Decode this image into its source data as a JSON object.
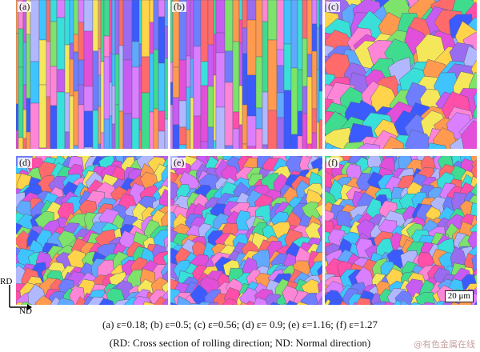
{
  "panels": [
    {
      "label": "(a)",
      "pattern": "columnar"
    },
    {
      "label": "(b)",
      "pattern": "columnar"
    },
    {
      "label": "(c)",
      "pattern": "coarse-equiaxed"
    },
    {
      "label": "(d)",
      "pattern": "equiaxed"
    },
    {
      "label": "(e)",
      "pattern": "equiaxed"
    },
    {
      "label": "(f)",
      "pattern": "equiaxed"
    }
  ],
  "scale_bar": "20 μm",
  "axes": {
    "vertical": "RD",
    "horizontal": "ND"
  },
  "caption": {
    "line1": "(a) ε=0.18; (b) ε=0.5; (c) ε=0.56; (d) ε= 0.9; (e) ε=1.16; (f) ε=1.27",
    "line2": "(RD: Cross section of rolling direction; ND: Normal direction)"
  },
  "watermark": "@有色金属在线",
  "palette": [
    "#3b5bff",
    "#6f7dff",
    "#9a6cf0",
    "#c65cf2",
    "#e24fd8",
    "#ff4fa8",
    "#ff6b6b",
    "#ff9a4f",
    "#ffd34a",
    "#f5e75a",
    "#7de36a",
    "#3fdc8f",
    "#38e0d9",
    "#3fc4ff",
    "#61a8ff",
    "#b1b8ff",
    "#d97fff",
    "#ff86d6"
  ]
}
